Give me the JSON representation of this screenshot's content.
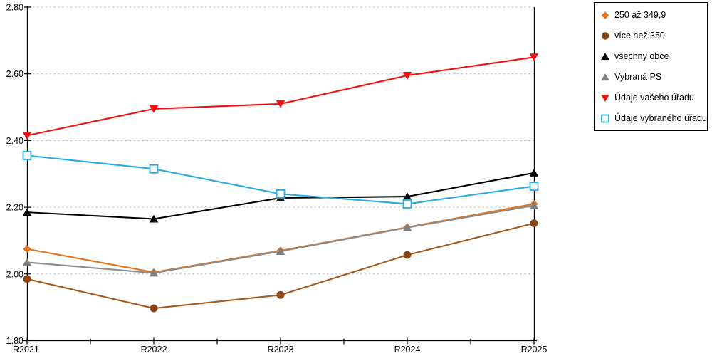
{
  "chart_data": {
    "type": "line",
    "title": "",
    "xlabel": "",
    "ylabel": "",
    "categories": [
      "R2021",
      "R2022",
      "R2023",
      "R2024",
      "R2025"
    ],
    "series": [
      {
        "name": "250 až 349,9",
        "marker": "diamond",
        "color": "#E2751D",
        "marker_color": "#E2751D",
        "values": [
          2.075,
          2.005,
          2.07,
          2.14,
          2.21
        ]
      },
      {
        "name": "více než 350",
        "marker": "circle",
        "color": "#A4591E",
        "marker_color": "#8B4513",
        "values": [
          1.985,
          1.897,
          1.937,
          2.057,
          2.152
        ]
      },
      {
        "name": "všechny obce",
        "marker": "triangle-up",
        "color": "#000000",
        "marker_color": "#000000",
        "values": [
          2.185,
          2.165,
          2.228,
          2.232,
          2.303
        ]
      },
      {
        "name": "Vybraná PS",
        "marker": "triangle-up",
        "color": "#8C8C8C",
        "marker_color": "#7F7F7F",
        "values": [
          2.035,
          2.003,
          2.068,
          2.139,
          2.205
        ]
      },
      {
        "name": "Údaje vašeho úřadu",
        "marker": "triangle-down",
        "color": "#F50F10",
        "marker_color": "#F50F10",
        "values": [
          2.415,
          2.495,
          2.51,
          2.595,
          2.65
        ]
      },
      {
        "name": "Údaje vybraného úřadu",
        "marker": "square-open",
        "color": "#29ABE2",
        "marker_color": "#29ABE2",
        "values": [
          2.355,
          2.315,
          2.24,
          2.21,
          2.263
        ]
      }
    ],
    "ylim": [
      1.8,
      2.8
    ],
    "y_ticks": [
      1.8,
      2.0,
      2.2,
      2.4,
      2.6,
      2.8
    ],
    "y_tick_labels": [
      "1.80",
      "2.00",
      "2.20",
      "2.40",
      "2.60",
      "2.80"
    ],
    "grid": "horizontal-dotted",
    "grid_color": "#bfbfbf",
    "axis_color": "#000000",
    "legend_position": "outside-top-right"
  }
}
